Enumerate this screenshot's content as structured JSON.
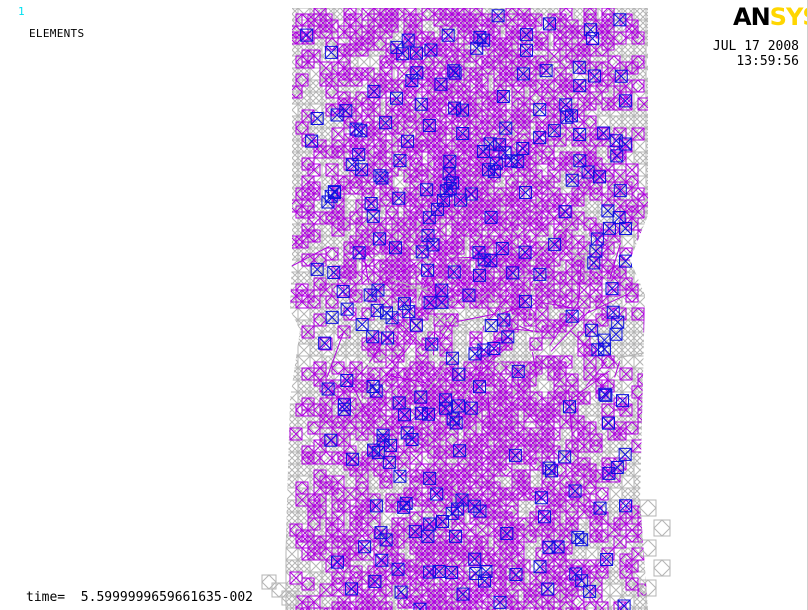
{
  "window": {
    "number": "1",
    "title": "ELEMENTS"
  },
  "logo": {
    "text_dark": "AN",
    "text_accent": "SYS",
    "colors": {
      "dark": "#000000",
      "accent": "#ffd600"
    }
  },
  "timestamp": {
    "date": "JUL 17 2008",
    "time": "13:59:56"
  },
  "footer": {
    "time_label": "time=",
    "time_value": "5.5999999659661635-002"
  },
  "colors": {
    "mesh_gray": "#b4b4b4",
    "mesh_magenta": "#b000e0",
    "mesh_blue": "#1010e0",
    "window_number": "#00e0f0"
  }
}
